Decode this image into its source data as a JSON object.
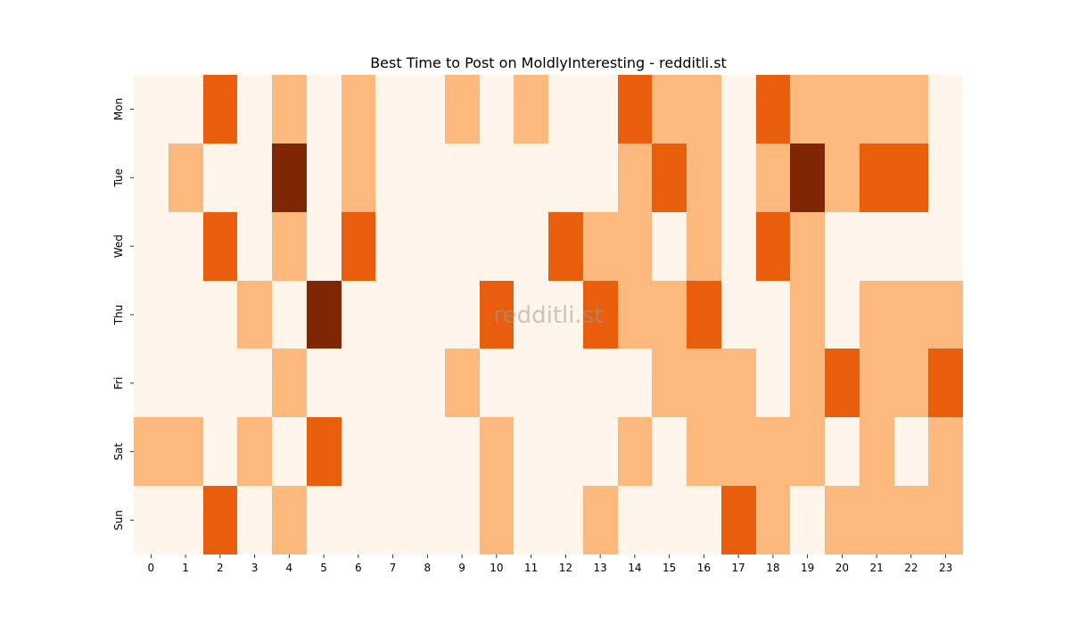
{
  "chart_data": {
    "type": "heatmap",
    "title": "Best Time to Post on MoldlyInteresting - redditli.st",
    "watermark": "redditli.st",
    "colormap": "Oranges",
    "colors": [
      "#fff5eb",
      "#fdb97d",
      "#e95e0d",
      "#7f2704"
    ],
    "x_categories": [
      "0",
      "1",
      "2",
      "3",
      "4",
      "5",
      "6",
      "7",
      "8",
      "9",
      "10",
      "11",
      "12",
      "13",
      "14",
      "15",
      "16",
      "17",
      "18",
      "19",
      "20",
      "21",
      "22",
      "23"
    ],
    "y_categories": [
      "Mon",
      "Tue",
      "Wed",
      "Thu",
      "Fri",
      "Sat",
      "Sun"
    ],
    "values": [
      [
        0,
        0,
        2,
        0,
        1,
        0,
        1,
        0,
        0,
        1,
        0,
        1,
        0,
        0,
        2,
        1,
        1,
        0,
        2,
        1,
        1,
        1,
        1,
        0
      ],
      [
        0,
        1,
        0,
        0,
        3,
        0,
        1,
        0,
        0,
        0,
        0,
        0,
        0,
        0,
        1,
        2,
        1,
        0,
        1,
        3,
        1,
        2,
        2,
        0
      ],
      [
        0,
        0,
        2,
        0,
        1,
        0,
        2,
        0,
        0,
        0,
        0,
        0,
        2,
        1,
        1,
        0,
        1,
        0,
        2,
        1,
        0,
        0,
        0,
        0
      ],
      [
        0,
        0,
        0,
        1,
        0,
        3,
        0,
        0,
        0,
        0,
        2,
        0,
        0,
        2,
        1,
        1,
        2,
        0,
        0,
        1,
        0,
        1,
        1,
        1
      ],
      [
        0,
        0,
        0,
        0,
        1,
        0,
        0,
        0,
        0,
        1,
        0,
        0,
        0,
        0,
        0,
        1,
        1,
        1,
        0,
        1,
        2,
        1,
        1,
        2
      ],
      [
        1,
        1,
        0,
        1,
        0,
        2,
        0,
        0,
        0,
        0,
        1,
        0,
        0,
        0,
        1,
        0,
        1,
        1,
        1,
        1,
        0,
        1,
        0,
        1
      ],
      [
        0,
        0,
        2,
        0,
        1,
        0,
        0,
        0,
        0,
        0,
        1,
        0,
        0,
        1,
        0,
        0,
        0,
        2,
        1,
        0,
        1,
        1,
        1,
        1
      ]
    ],
    "vmin": 0,
    "vmax": 3,
    "colorbar": false,
    "grid": false
  }
}
